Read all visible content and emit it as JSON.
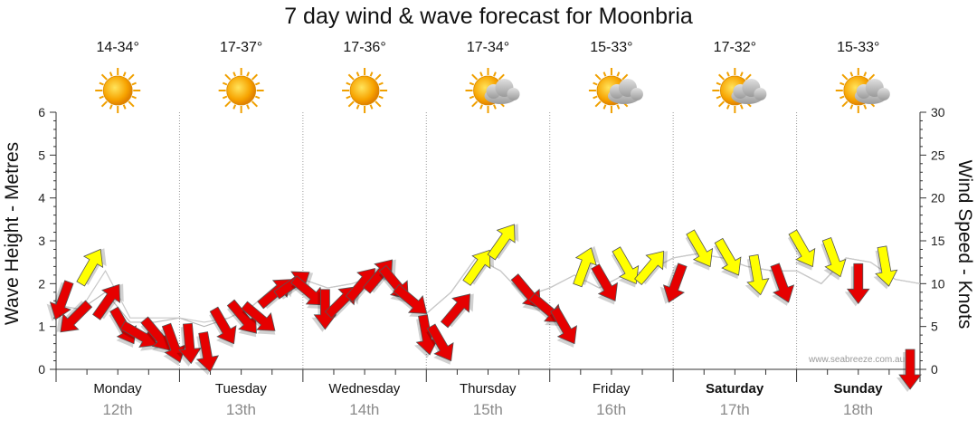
{
  "chart_data": {
    "type": "line",
    "title": "7 day wind & wave forecast for Moonbria",
    "ylabel": "Wave Height - Metres",
    "ylabel_right": "Wind Speed - Knots",
    "ylim": [
      0,
      6
    ],
    "ylim_right": [
      0,
      30
    ],
    "yticks": [
      "0",
      "1",
      "2",
      "3",
      "4",
      "5",
      "6"
    ],
    "yticks_right": [
      "0",
      "5",
      "10",
      "15",
      "20",
      "25",
      "30"
    ],
    "grid": true,
    "days": [
      {
        "day": "Monday",
        "date": "12th",
        "temp": "14-34°",
        "weather": "sunny-icon",
        "bold": false
      },
      {
        "day": "Tuesday",
        "date": "13th",
        "temp": "17-37°",
        "weather": "sunny-icon",
        "bold": false
      },
      {
        "day": "Wednesday",
        "date": "14th",
        "temp": "17-36°",
        "weather": "sunny-icon",
        "bold": false
      },
      {
        "day": "Thursday",
        "date": "15th",
        "temp": "17-34°",
        "weather": "partly-cloudy-icon",
        "bold": false
      },
      {
        "day": "Friday",
        "date": "16th",
        "temp": "15-33°",
        "weather": "partly-cloudy-icon",
        "bold": false
      },
      {
        "day": "Saturday",
        "date": "17th",
        "temp": "17-32°",
        "weather": "partly-cloudy-icon",
        "bold": true
      },
      {
        "day": "Sunday",
        "date": "18th",
        "temp": "15-33°",
        "weather": "partly-cloudy-icon",
        "bold": true
      }
    ],
    "series": [
      {
        "name": "Wind Speed (knots)",
        "axis": "right",
        "x": [
          0,
          0.2,
          0.4,
          0.6,
          0.8,
          1.0,
          1.2,
          1.4,
          1.6,
          1.8,
          2.0,
          2.2,
          2.4,
          2.6,
          2.8,
          3.0,
          3.2,
          3.4,
          3.6,
          3.8,
          4.0,
          4.2,
          4.4,
          4.6,
          4.8,
          5.0,
          5.2,
          5.4,
          5.6,
          5.8,
          6.0,
          6.2,
          6.4,
          6.6,
          6.8,
          7.0
        ],
        "values": [
          7.5,
          7.0,
          9.0,
          5.5,
          5.5,
          6.0,
          5.0,
          6.0,
          7.5,
          10.0,
          10.5,
          9.5,
          10.0,
          11.0,
          9.5,
          6.5,
          9.0,
          13.0,
          11.5,
          8.5,
          9.5,
          11.0,
          9.5,
          11.0,
          11.5,
          13.0,
          13.5,
          13.0,
          12.0,
          11.5,
          11.5,
          10.0,
          13.0,
          12.5,
          10.5,
          10.0
        ]
      },
      {
        "name": "Wave Height (m)",
        "axis": "left",
        "x": [
          0,
          0.2,
          0.4,
          0.6,
          0.8,
          1.0,
          1.2,
          1.4,
          1.6,
          1.8,
          2.0,
          2.2,
          2.4,
          2.6,
          2.8,
          3.0,
          3.2,
          3.4,
          3.6,
          3.8,
          4.0,
          4.2,
          4.4,
          4.6,
          4.8,
          5.0,
          5.2,
          5.4,
          5.6,
          5.8,
          6.0,
          6.2,
          6.4,
          6.6,
          6.8,
          7.0
        ],
        "values": [
          1.5,
          1.4,
          2.3,
          1.2,
          1.2,
          1.2,
          1.1,
          1.2,
          1.5,
          2.0,
          2.1,
          1.9,
          2.0,
          2.2,
          1.9,
          1.3,
          1.8,
          2.6,
          2.3,
          1.7,
          1.9,
          2.2,
          1.9,
          2.2,
          2.3,
          2.6,
          2.7,
          2.6,
          2.4,
          2.3,
          2.3,
          2.0,
          2.6,
          2.5,
          2.1,
          2.0
        ]
      }
    ],
    "wind_arrows": [
      {
        "x": 0.05,
        "knots": 8,
        "dir": 200,
        "color": "#e60000"
      },
      {
        "x": 0.15,
        "knots": 6,
        "dir": 225,
        "color": "#e60000"
      },
      {
        "x": 0.28,
        "knots": 12,
        "dir": 30,
        "color": "#ffff00"
      },
      {
        "x": 0.42,
        "knots": 8,
        "dir": 35,
        "color": "#e60000"
      },
      {
        "x": 0.55,
        "knots": 5,
        "dir": 150,
        "color": "#e60000"
      },
      {
        "x": 0.68,
        "knots": 4,
        "dir": 120,
        "color": "#e60000"
      },
      {
        "x": 0.82,
        "knots": 4,
        "dir": 140,
        "color": "#e60000"
      },
      {
        "x": 0.95,
        "knots": 3,
        "dir": 160,
        "color": "#e60000"
      },
      {
        "x": 1.08,
        "knots": 3,
        "dir": 175,
        "color": "#e60000"
      },
      {
        "x": 1.22,
        "knots": 2,
        "dir": 170,
        "color": "#e60000"
      },
      {
        "x": 1.36,
        "knots": 5,
        "dir": 150,
        "color": "#e60000"
      },
      {
        "x": 1.52,
        "knots": 6,
        "dir": 140,
        "color": "#e60000"
      },
      {
        "x": 1.65,
        "knots": 6,
        "dir": 130,
        "color": "#e60000"
      },
      {
        "x": 1.78,
        "knots": 9,
        "dir": 50,
        "color": "#e60000"
      },
      {
        "x": 1.92,
        "knots": 10,
        "dir": 55,
        "color": "#e60000"
      },
      {
        "x": 2.05,
        "knots": 9,
        "dir": 130,
        "color": "#e60000"
      },
      {
        "x": 2.18,
        "knots": 7,
        "dir": 180,
        "color": "#e60000"
      },
      {
        "x": 2.32,
        "knots": 8,
        "dir": 45,
        "color": "#e60000"
      },
      {
        "x": 2.48,
        "knots": 10,
        "dir": 40,
        "color": "#e60000"
      },
      {
        "x": 2.62,
        "knots": 11,
        "dir": 40,
        "color": "#e60000"
      },
      {
        "x": 2.75,
        "knots": 10,
        "dir": 140,
        "color": "#e60000"
      },
      {
        "x": 2.88,
        "knots": 8,
        "dir": 130,
        "color": "#e60000"
      },
      {
        "x": 3.0,
        "knots": 4,
        "dir": 170,
        "color": "#e60000"
      },
      {
        "x": 3.12,
        "knots": 3,
        "dir": 150,
        "color": "#e60000"
      },
      {
        "x": 3.25,
        "knots": 7,
        "dir": 40,
        "color": "#e60000"
      },
      {
        "x": 3.42,
        "knots": 12,
        "dir": 35,
        "color": "#ffff00"
      },
      {
        "x": 3.62,
        "knots": 15,
        "dir": 35,
        "color": "#ffff00"
      },
      {
        "x": 3.82,
        "knots": 9,
        "dir": 140,
        "color": "#e60000"
      },
      {
        "x": 3.98,
        "knots": 7,
        "dir": 130,
        "color": "#e60000"
      },
      {
        "x": 4.12,
        "knots": 5,
        "dir": 150,
        "color": "#e60000"
      },
      {
        "x": 4.28,
        "knots": 12,
        "dir": 20,
        "color": "#ffff00"
      },
      {
        "x": 4.45,
        "knots": 10,
        "dir": 150,
        "color": "#e60000"
      },
      {
        "x": 4.62,
        "knots": 12,
        "dir": 150,
        "color": "#ffff00"
      },
      {
        "x": 4.82,
        "knots": 12,
        "dir": 40,
        "color": "#ffff00"
      },
      {
        "x": 5.02,
        "knots": 10,
        "dir": 200,
        "color": "#e60000"
      },
      {
        "x": 5.22,
        "knots": 14,
        "dir": 150,
        "color": "#ffff00"
      },
      {
        "x": 5.45,
        "knots": 13,
        "dir": 150,
        "color": "#ffff00"
      },
      {
        "x": 5.68,
        "knots": 11,
        "dir": 170,
        "color": "#ffff00"
      },
      {
        "x": 5.88,
        "knots": 10,
        "dir": 160,
        "color": "#e60000"
      },
      {
        "x": 6.05,
        "knots": 14,
        "dir": 150,
        "color": "#ffff00"
      },
      {
        "x": 6.3,
        "knots": 13,
        "dir": 160,
        "color": "#ffff00"
      },
      {
        "x": 6.5,
        "knots": 10,
        "dir": 180,
        "color": "#e60000"
      },
      {
        "x": 6.72,
        "knots": 12,
        "dir": 170,
        "color": "#ffff00"
      },
      {
        "x": 6.92,
        "knots": 0,
        "dir": 180,
        "color": "#e60000"
      }
    ]
  },
  "watermark": "www.seabreeze.com.au"
}
